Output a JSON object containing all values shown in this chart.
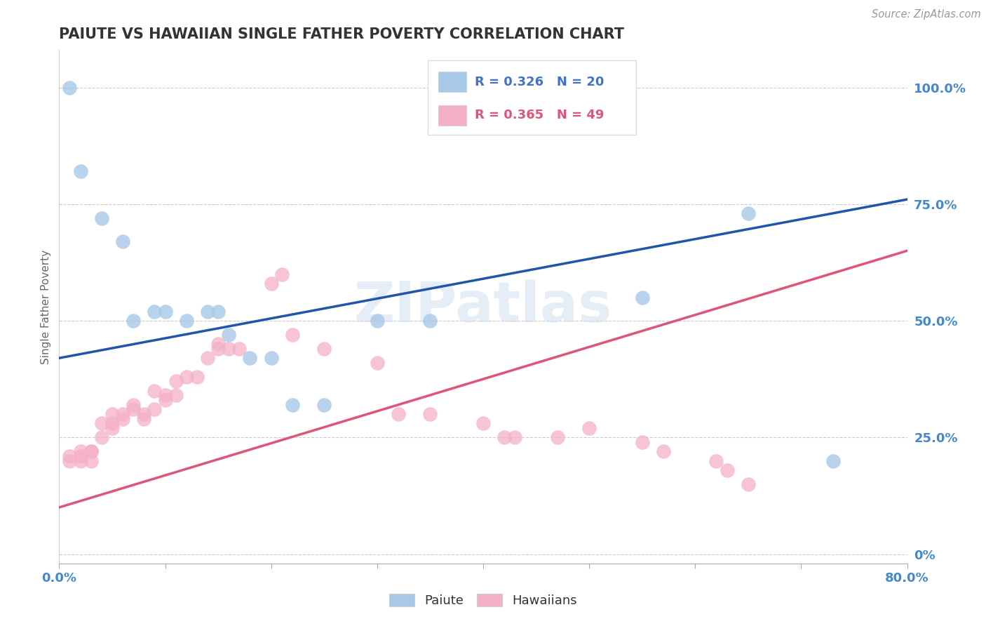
{
  "title": "PAIUTE VS HAWAIIAN SINGLE FATHER POVERTY CORRELATION CHART",
  "source_text": "Source: ZipAtlas.com",
  "ylabel": "Single Father Poverty",
  "xlim": [
    0.0,
    0.8
  ],
  "ylim": [
    -0.02,
    1.08
  ],
  "ytick_positions": [
    0.0,
    0.25,
    0.5,
    0.75,
    1.0
  ],
  "ytick_labels": [
    "0%",
    "25.0%",
    "50.0%",
    "75.0%",
    "100.0%"
  ],
  "paiute_r": 0.326,
  "paiute_n": 20,
  "hawaiian_r": 0.365,
  "hawaiian_n": 49,
  "paiute_color": "#a8c8e8",
  "hawaiian_color": "#f4b0c8",
  "paiute_line_color": "#2255aa",
  "hawaiian_line_color": "#dd5577",
  "legend_paiute_color": "#4472c4",
  "legend_hawaiian_color": "#dd5577",
  "watermark": "ZIPatlas",
  "background_color": "#ffffff",
  "paiute_x": [
    0.01,
    0.02,
    0.04,
    0.06,
    0.07,
    0.09,
    0.1,
    0.12,
    0.14,
    0.15,
    0.16,
    0.18,
    0.2,
    0.22,
    0.25,
    0.3,
    0.35,
    0.55,
    0.65,
    0.73
  ],
  "paiute_y": [
    1.0,
    0.82,
    0.72,
    0.67,
    0.5,
    0.52,
    0.52,
    0.5,
    0.52,
    0.52,
    0.47,
    0.42,
    0.42,
    0.32,
    0.32,
    0.5,
    0.5,
    0.55,
    0.73,
    0.2
  ],
  "hawaiian_x": [
    0.01,
    0.01,
    0.02,
    0.02,
    0.02,
    0.03,
    0.03,
    0.03,
    0.04,
    0.04,
    0.05,
    0.05,
    0.05,
    0.06,
    0.06,
    0.07,
    0.07,
    0.08,
    0.08,
    0.09,
    0.09,
    0.1,
    0.1,
    0.11,
    0.11,
    0.12,
    0.13,
    0.14,
    0.15,
    0.15,
    0.16,
    0.17,
    0.2,
    0.21,
    0.22,
    0.25,
    0.3,
    0.32,
    0.35,
    0.4,
    0.42,
    0.43,
    0.47,
    0.5,
    0.55,
    0.57,
    0.62,
    0.63,
    0.65
  ],
  "hawaiian_y": [
    0.2,
    0.21,
    0.22,
    0.2,
    0.21,
    0.22,
    0.2,
    0.22,
    0.25,
    0.28,
    0.28,
    0.27,
    0.3,
    0.3,
    0.29,
    0.32,
    0.31,
    0.3,
    0.29,
    0.31,
    0.35,
    0.34,
    0.33,
    0.34,
    0.37,
    0.38,
    0.38,
    0.42,
    0.44,
    0.45,
    0.44,
    0.44,
    0.58,
    0.6,
    0.47,
    0.44,
    0.41,
    0.3,
    0.3,
    0.28,
    0.25,
    0.25,
    0.25,
    0.27,
    0.24,
    0.22,
    0.2,
    0.18,
    0.15
  ],
  "paiute_trendline_x0": 0.0,
  "paiute_trendline_y0": 0.42,
  "paiute_trendline_x1": 0.8,
  "paiute_trendline_y1": 0.76,
  "hawaiian_trendline_x0": 0.0,
  "hawaiian_trendline_y0": 0.1,
  "hawaiian_trendline_x1": 0.8,
  "hawaiian_trendline_y1": 0.65
}
